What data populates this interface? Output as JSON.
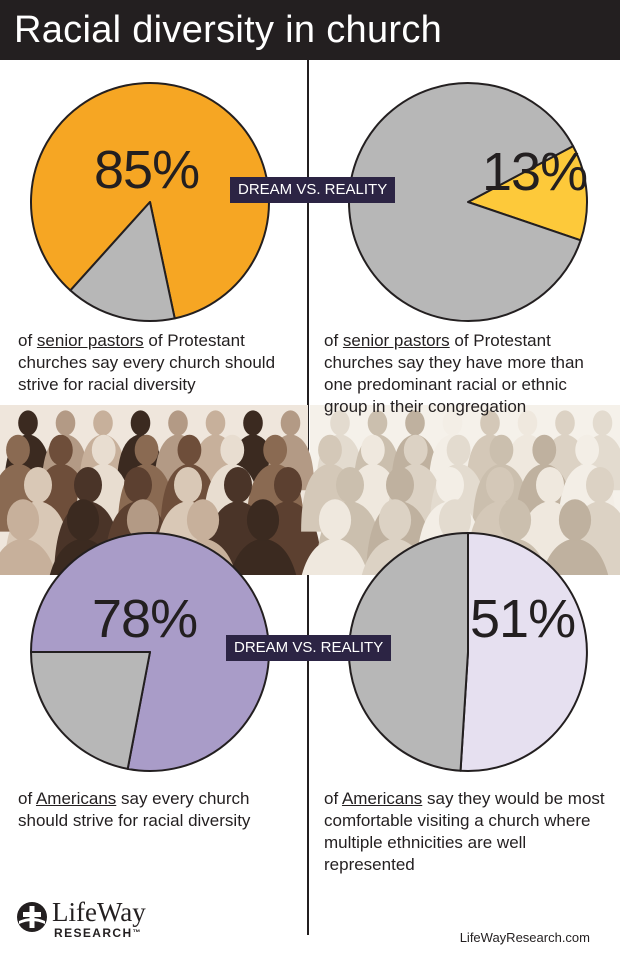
{
  "header": {
    "title": "Racial diversity in church"
  },
  "tags": {
    "top": "DREAM VS. REALITY",
    "bottom": "DREAM VS. REALITY"
  },
  "colors": {
    "gray": "#b7b7b7",
    "orange": "#f6a623",
    "yellow": "#fdc93a",
    "purple": "#a99cc8",
    "lavender": "#e6e0f0",
    "outline": "#231f20",
    "tag_bg": "#2c2444"
  },
  "chart_data": [
    {
      "type": "pie",
      "label": "85%",
      "values": [
        85,
        15
      ],
      "colors": [
        "#f6a623",
        "#b7b7b7"
      ],
      "caption": {
        "before": "of ",
        "underlined": "senior pastors",
        "after": " of Protestant churches say every church should strive for racial diversity"
      }
    },
    {
      "type": "pie",
      "label": "13%",
      "values": [
        13,
        87
      ],
      "colors": [
        "#fdc93a",
        "#b7b7b7"
      ],
      "caption": {
        "before": "of ",
        "underlined": "senior pastors",
        "after": " of Protestant churches say they have more than one predominant racial or ethnic group in their congregation"
      }
    },
    {
      "type": "pie",
      "label": "78%",
      "values": [
        78,
        22
      ],
      "colors": [
        "#a99cc8",
        "#b7b7b7"
      ],
      "caption": {
        "before": "of ",
        "underlined": "Americans",
        "after": " say every church should strive for racial diversity"
      }
    },
    {
      "type": "pie",
      "label": "51%",
      "values": [
        51,
        49
      ],
      "colors": [
        "#e6e0f0",
        "#b7b7b7"
      ],
      "caption": {
        "before": "of ",
        "underlined": "Americans",
        "after": " say they would be most comfortable visiting a church where multiple ethnicities are well represented"
      }
    }
  ],
  "footer": {
    "logo_name": "LifeWay",
    "logo_sub": "RESEARCH",
    "logo_mark": "™",
    "url": "LifeWayResearch.com"
  }
}
